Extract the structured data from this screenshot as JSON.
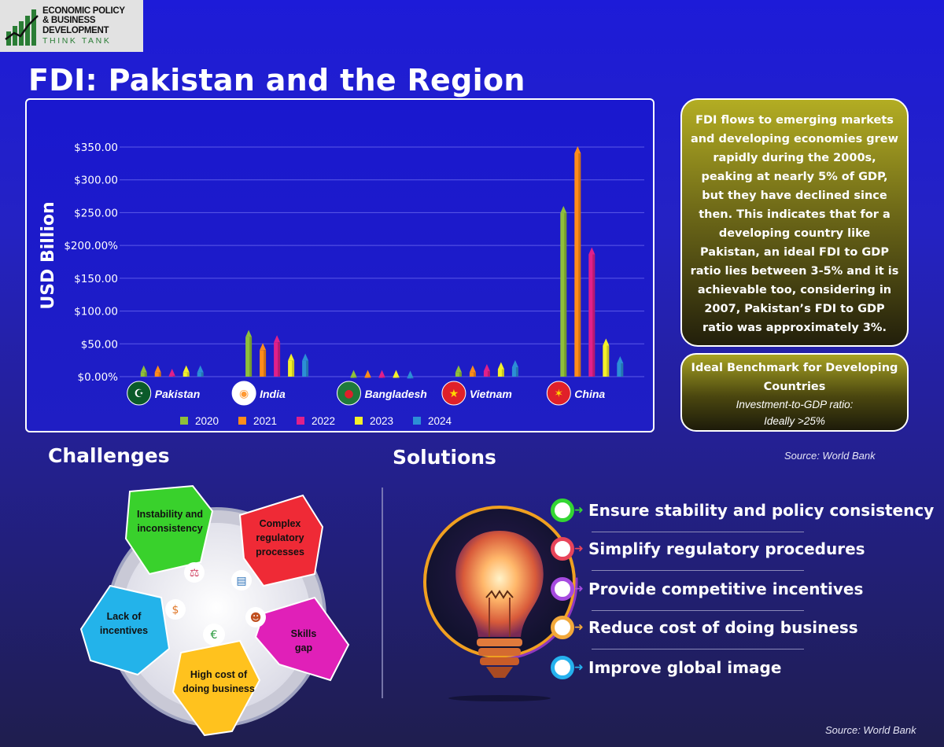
{
  "logo": {
    "line1": "ECONOMIC POLICY",
    "line2": "& BUSINESS DEVELOPMENT",
    "line3": "THINK TANK"
  },
  "title": "FDI: Pakistan and the Region",
  "chart_data": {
    "type": "bar",
    "ylabel": "USD Billion",
    "ytick_labels": [
      "$0.00%",
      "$50.00",
      "$100.00",
      "$150.00",
      "$200.00%",
      "$250.00",
      "$300.00",
      "$350.00"
    ],
    "ylim": [
      0,
      350
    ],
    "categories": [
      "Pakistan",
      "India",
      "Bangladesh",
      "Vietnam",
      "China"
    ],
    "series": [
      {
        "name": "2020",
        "color": "#8fbf3a",
        "values": [
          10,
          64,
          3,
          10,
          253
        ]
      },
      {
        "name": "2021",
        "color": "#ff8c1a",
        "values": [
          10,
          44,
          3,
          10,
          344
        ]
      },
      {
        "name": "2022",
        "color": "#e0208a",
        "values": [
          5,
          56,
          3,
          12,
          190
        ]
      },
      {
        "name": "2023",
        "color": "#f3f02a",
        "values": [
          10,
          28,
          3,
          15,
          51
        ]
      },
      {
        "name": "2024",
        "color": "#2c8fd6",
        "values": [
          10,
          28,
          2,
          18,
          24
        ]
      }
    ]
  },
  "info_text": "FDI flows to emerging markets and developing economies grew rapidly during the 2000s, peaking at nearly 5% of GDP, but they have declined since then. This indicates that for a developing country like Pakistan, an ideal FDI to GDP ratio lies between 3-5% and it is achievable too, considering in 2007, Pakistan’s FDI to GDP ratio was approximately 3%.",
  "benchmark": {
    "title": "Ideal Benchmark for Developing Countries",
    "line1": "Investment-to-GDP ratio:",
    "line2": "Ideally >25%"
  },
  "source_top": "Source: World Bank",
  "challenges": {
    "heading": "Challenges",
    "items": [
      {
        "label": "Instability and inconsistency",
        "color": "#39d12c"
      },
      {
        "label": "Complex regulatory processes",
        "color": "#ef2a36"
      },
      {
        "label": "Skills gap",
        "color": "#e020b8"
      },
      {
        "label": "High cost of doing business",
        "color": "#ffc21e"
      },
      {
        "label": "Lack of incentives",
        "color": "#23b3ea"
      }
    ]
  },
  "solutions": {
    "heading": "Solutions",
    "items": [
      {
        "label": "Ensure stability and policy consistency",
        "color": "#33d633"
      },
      {
        "label": "Simplify regulatory procedures",
        "color": "#e8445a"
      },
      {
        "label": "Provide competitive incentives",
        "color": "#a64be0"
      },
      {
        "label": "Reduce cost of doing business",
        "color": "#f2a83a"
      },
      {
        "label": "Improve global image",
        "color": "#25b1ee"
      }
    ]
  },
  "source_bottom": "Source: World Bank"
}
